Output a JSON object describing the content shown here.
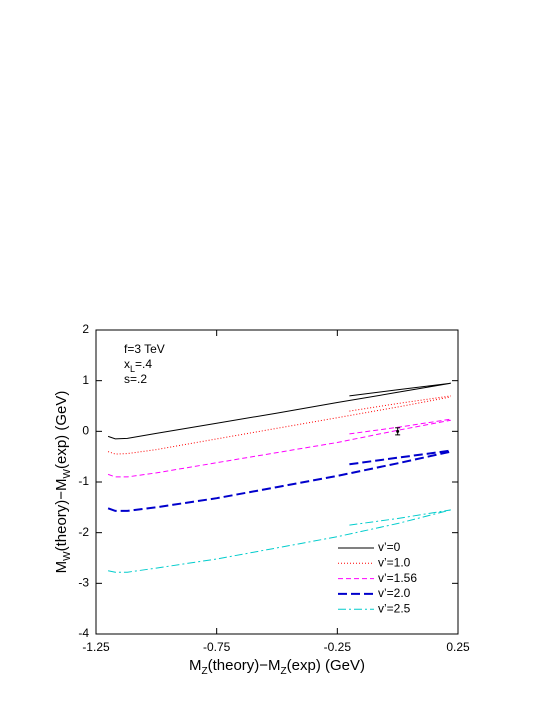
{
  "chart_data": {
    "type": "line",
    "xlabel_parts": [
      "M",
      "Z",
      "(theory)−M",
      "Z",
      "(exp) (GeV)"
    ],
    "ylabel_parts": [
      "M",
      "W",
      "(theory)−M",
      "W",
      "(exp) (GeV)"
    ],
    "annotations": [
      [
        "f=3 TeV"
      ],
      [
        "x",
        "L",
        "=.4"
      ],
      [
        "s=.2"
      ]
    ],
    "xlim": [
      -1.25,
      0.25
    ],
    "xticks": [
      -1.25,
      -0.75,
      -0.25,
      0.25
    ],
    "ylim": [
      -4,
      2
    ],
    "yticks": [
      -4,
      -3,
      -2,
      -1,
      0,
      1,
      2
    ],
    "legend": "lower right",
    "series": [
      {
        "name": "v’=0",
        "color": "#000000",
        "dash": "none",
        "width": 1,
        "x": [
          -1.2,
          -1.17,
          -1.12,
          -1.0,
          -0.75,
          -0.5,
          -0.25,
          0,
          0.22,
          null,
          -0.2,
          0,
          0.22
        ],
        "values": [
          -0.1,
          -0.15,
          -0.14,
          -0.04,
          0.16,
          0.36,
          0.57,
          0.77,
          0.95,
          null,
          0.7,
          0.82,
          0.95
        ]
      },
      {
        "name": "v’=1.0",
        "color": "#ff0000",
        "dash": "1,2",
        "width": 1,
        "x": [
          -1.2,
          -1.17,
          -1.12,
          -1.0,
          -0.75,
          -0.5,
          -0.25,
          0,
          0.22,
          null,
          -0.2,
          0,
          0.22
        ],
        "values": [
          -0.4,
          -0.45,
          -0.44,
          -0.36,
          -0.15,
          0.06,
          0.27,
          0.48,
          0.68,
          null,
          0.4,
          0.55,
          0.7
        ]
      },
      {
        "name": "v’=1.56",
        "color": "#ff00ff",
        "dash": "5,3",
        "width": 1,
        "x": [
          -1.2,
          -1.17,
          -1.12,
          -1.0,
          -0.75,
          -0.5,
          -0.25,
          0,
          0.22,
          null,
          -0.2,
          0,
          0.22
        ],
        "values": [
          -0.85,
          -0.9,
          -0.9,
          -0.82,
          -0.62,
          -0.42,
          -0.22,
          0.02,
          0.22,
          null,
          -0.05,
          0.08,
          0.24
        ]
      },
      {
        "name": "v’=2.0",
        "color": "#0000cc",
        "dash": "9,4",
        "width": 2,
        "x": [
          -1.2,
          -1.17,
          -1.12,
          -1.0,
          -0.75,
          -0.5,
          -0.25,
          0,
          0.22,
          null,
          -0.2,
          0,
          0.22
        ],
        "values": [
          -1.52,
          -1.57,
          -1.57,
          -1.5,
          -1.32,
          -1.1,
          -0.88,
          -0.63,
          -0.4,
          null,
          -0.65,
          -0.52,
          -0.38
        ]
      },
      {
        "name": "v’=2.5",
        "color": "#00cccc",
        "dash": "8,3,2,3",
        "width": 1,
        "x": [
          -1.2,
          -1.17,
          -1.12,
          -1.0,
          -0.75,
          -0.5,
          -0.25,
          0,
          0.22,
          null,
          -0.2,
          0,
          0.22
        ],
        "values": [
          -2.75,
          -2.78,
          -2.78,
          -2.7,
          -2.52,
          -2.3,
          -2.08,
          -1.82,
          -1.55,
          null,
          -1.85,
          -1.72,
          -1.55
        ]
      }
    ],
    "measurement": {
      "x": 0,
      "y": 0,
      "yerr": 0.07
    }
  }
}
